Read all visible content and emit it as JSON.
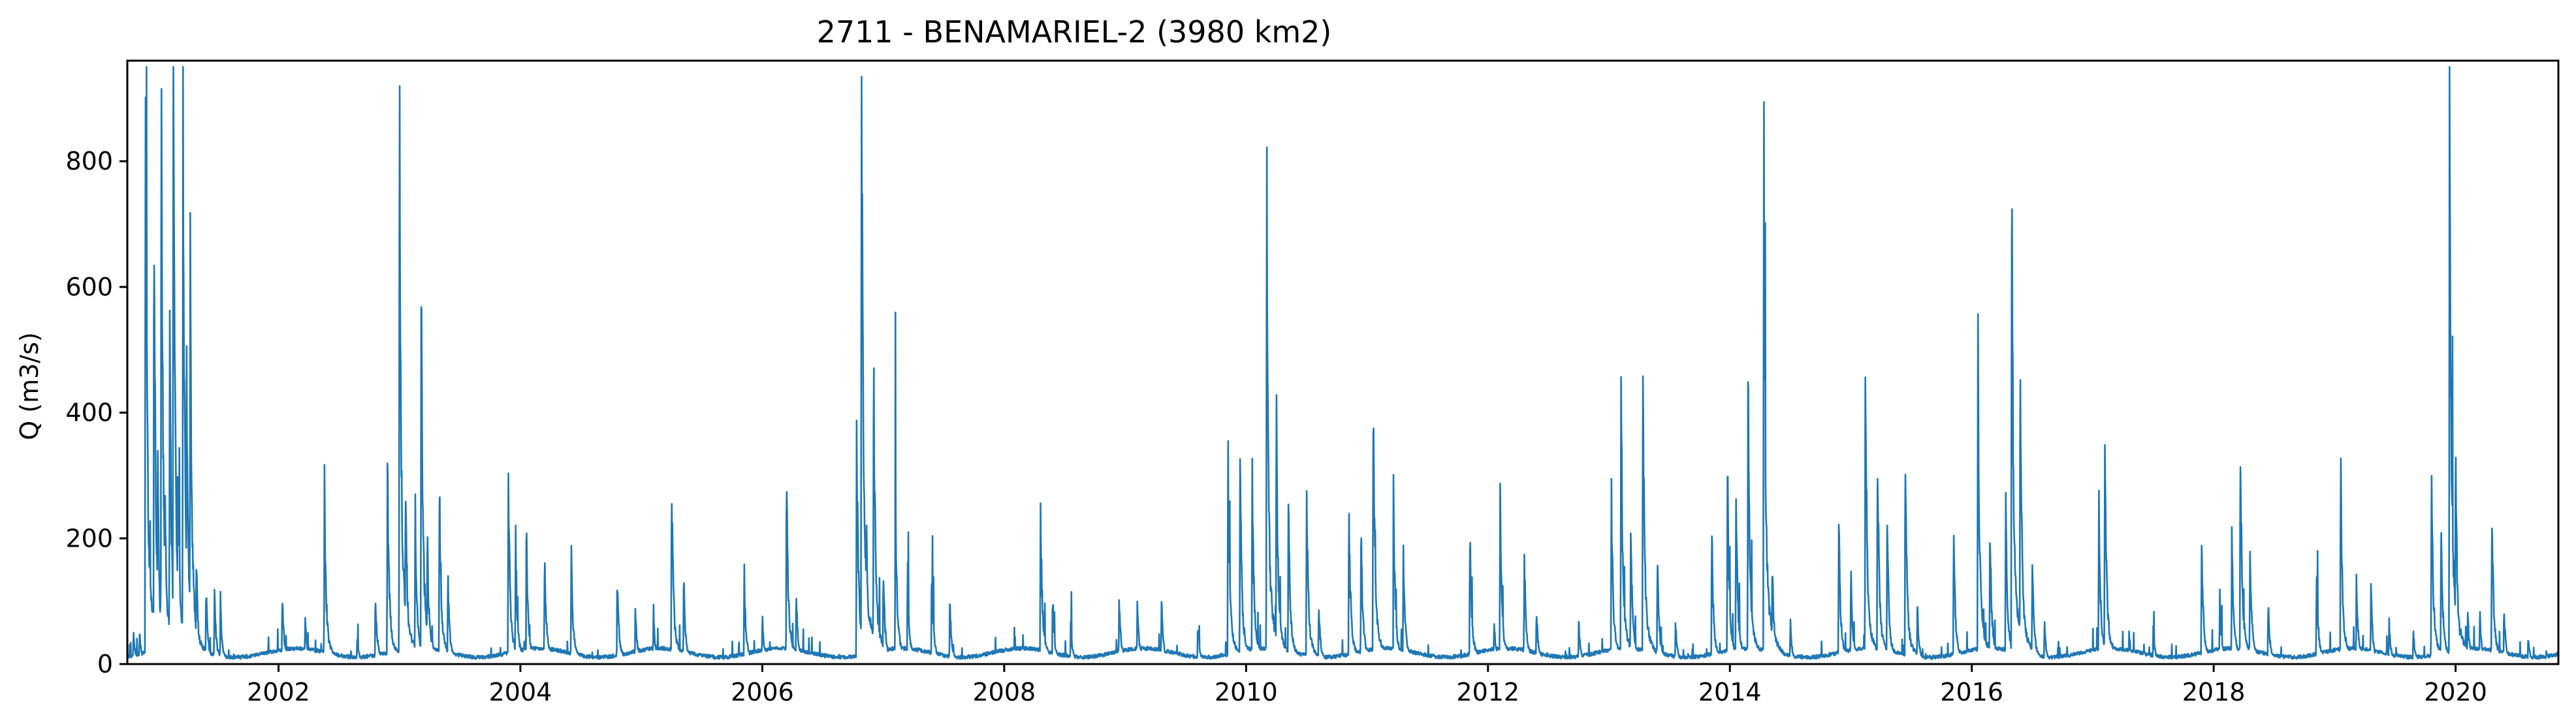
{
  "chart_data": {
    "type": "line",
    "title": "2711 - BENAMARIEL-2 (3980 km2)",
    "xlabel": "",
    "ylabel": "Q (m3/s)",
    "xlim": [
      2000.75,
      2020.85
    ],
    "ylim": [
      0,
      960
    ],
    "xticks": [
      2002,
      2004,
      2006,
      2008,
      2010,
      2012,
      2014,
      2016,
      2018,
      2020
    ],
    "yticks": [
      0,
      200,
      400,
      600,
      800
    ],
    "grid": false,
    "color": "#1f77b4",
    "peaks": [
      [
        2000.8,
        45
      ],
      [
        2000.85,
        50
      ],
      [
        2000.9,
        880
      ],
      [
        2000.93,
        120
      ],
      [
        2000.97,
        660
      ],
      [
        2001.0,
        300
      ],
      [
        2001.03,
        840
      ],
      [
        2001.06,
        250
      ],
      [
        2001.1,
        480
      ],
      [
        2001.13,
        920
      ],
      [
        2001.17,
        300
      ],
      [
        2001.21,
        815
      ],
      [
        2001.24,
        400
      ],
      [
        2001.27,
        560
      ],
      [
        2001.32,
        160
      ],
      [
        2001.4,
        110
      ],
      [
        2001.47,
        100
      ],
      [
        2001.52,
        80
      ],
      [
        2002.03,
        105
      ],
      [
        2002.22,
        70
      ],
      [
        2002.38,
        242
      ],
      [
        2002.65,
        40
      ],
      [
        2002.8,
        110
      ],
      [
        2002.9,
        300
      ],
      [
        2003.0,
        800
      ],
      [
        2003.05,
        270
      ],
      [
        2003.13,
        230
      ],
      [
        2003.18,
        550
      ],
      [
        2003.23,
        190
      ],
      [
        2003.33,
        265
      ],
      [
        2003.4,
        130
      ],
      [
        2003.9,
        270
      ],
      [
        2003.96,
        180
      ],
      [
        2004.05,
        175
      ],
      [
        2004.2,
        160
      ],
      [
        2004.42,
        160
      ],
      [
        2004.8,
        130
      ],
      [
        2004.95,
        80
      ],
      [
        2005.1,
        75
      ],
      [
        2005.25,
        275
      ],
      [
        2005.35,
        120
      ],
      [
        2005.85,
        130
      ],
      [
        2006.0,
        70
      ],
      [
        2006.2,
        270
      ],
      [
        2006.28,
        100
      ],
      [
        2006.78,
        340
      ],
      [
        2006.82,
        895
      ],
      [
        2006.86,
        200
      ],
      [
        2006.92,
        455
      ],
      [
        2007.0,
        140
      ],
      [
        2007.1,
        240
      ],
      [
        2007.2,
        145
      ],
      [
        2007.4,
        145
      ],
      [
        2007.55,
        90
      ],
      [
        2008.3,
        232
      ],
      [
        2008.4,
        100
      ],
      [
        2008.55,
        60
      ],
      [
        2008.95,
        100
      ],
      [
        2009.1,
        90
      ],
      [
        2009.3,
        90
      ],
      [
        2009.6,
        60
      ],
      [
        2009.85,
        315
      ],
      [
        2009.95,
        300
      ],
      [
        2010.05,
        290
      ],
      [
        2010.17,
        720
      ],
      [
        2010.25,
        365
      ],
      [
        2010.35,
        240
      ],
      [
        2010.5,
        255
      ],
      [
        2010.6,
        90
      ],
      [
        2010.85,
        230
      ],
      [
        2010.95,
        200
      ],
      [
        2011.05,
        395
      ],
      [
        2011.22,
        220
      ],
      [
        2011.3,
        170
      ],
      [
        2011.85,
        195
      ],
      [
        2012.05,
        60
      ],
      [
        2012.1,
        235
      ],
      [
        2012.3,
        155
      ],
      [
        2012.4,
        80
      ],
      [
        2012.75,
        60
      ],
      [
        2013.02,
        250
      ],
      [
        2013.1,
        395
      ],
      [
        2013.18,
        200
      ],
      [
        2013.28,
        430
      ],
      [
        2013.4,
        150
      ],
      [
        2013.55,
        60
      ],
      [
        2013.85,
        190
      ],
      [
        2013.98,
        275
      ],
      [
        2014.05,
        240
      ],
      [
        2014.15,
        410
      ],
      [
        2014.28,
        738
      ],
      [
        2014.35,
        150
      ],
      [
        2014.5,
        60
      ],
      [
        2014.9,
        200
      ],
      [
        2015.0,
        130
      ],
      [
        2015.12,
        430
      ],
      [
        2015.22,
        320
      ],
      [
        2015.3,
        210
      ],
      [
        2015.45,
        295
      ],
      [
        2015.55,
        80
      ],
      [
        2015.85,
        180
      ],
      [
        2016.05,
        453
      ],
      [
        2016.15,
        200
      ],
      [
        2016.28,
        230
      ],
      [
        2016.33,
        703
      ],
      [
        2016.4,
        445
      ],
      [
        2016.5,
        150
      ],
      [
        2016.6,
        60
      ],
      [
        2017.05,
        240
      ],
      [
        2017.1,
        328
      ],
      [
        2017.3,
        50
      ],
      [
        2017.5,
        50
      ],
      [
        2017.9,
        180
      ],
      [
        2018.05,
        100
      ],
      [
        2018.15,
        200
      ],
      [
        2018.22,
        335
      ],
      [
        2018.3,
        180
      ],
      [
        2018.45,
        90
      ],
      [
        2018.85,
        140
      ],
      [
        2019.05,
        275
      ],
      [
        2019.18,
        120
      ],
      [
        2019.3,
        110
      ],
      [
        2019.45,
        60
      ],
      [
        2019.65,
        50
      ],
      [
        2019.8,
        290
      ],
      [
        2019.88,
        200
      ],
      [
        2019.95,
        860
      ],
      [
        2020.0,
        300
      ],
      [
        2020.1,
        80
      ],
      [
        2020.2,
        75
      ],
      [
        2020.3,
        222
      ],
      [
        2020.4,
        80
      ],
      [
        2020.6,
        40
      ],
      [
        2020.75,
        20
      ]
    ]
  }
}
